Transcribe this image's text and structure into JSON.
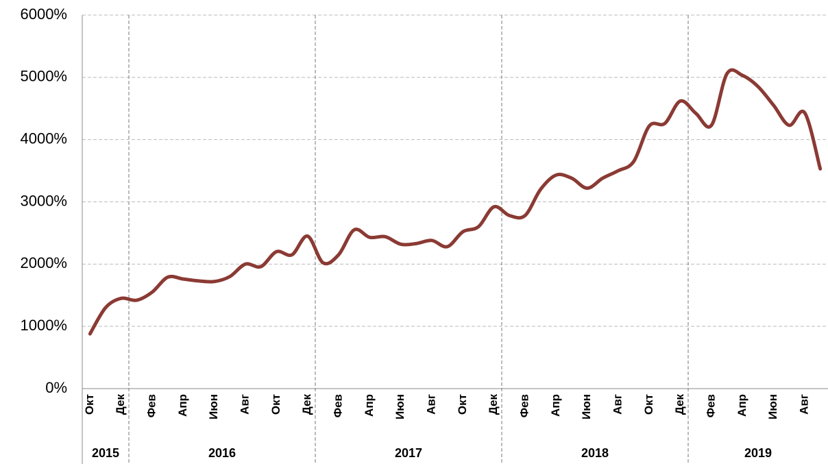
{
  "chart_data": {
    "type": "line",
    "categories": [
      "Окт",
      null,
      "Дек",
      null,
      "Фев",
      null,
      "Апр",
      null,
      "Июн",
      null,
      "Авг",
      null,
      "Окт",
      null,
      "Дек",
      null,
      "Фев",
      null,
      "Апр",
      null,
      "Июн",
      null,
      "Авг",
      null,
      "Окт",
      null,
      "Дек",
      null,
      "Фев",
      null,
      "Апр",
      null,
      "Июн",
      null,
      "Авг",
      null,
      "Окт",
      null,
      "Дек",
      null,
      "Фев",
      null,
      "Апр",
      null,
      "Июн",
      null,
      "Авг",
      null
    ],
    "x_groups": [
      "2015",
      "2015",
      "2015",
      "2016",
      "2016",
      "2016",
      "2016",
      "2016",
      "2016",
      "2016",
      "2016",
      "2016",
      "2016",
      "2016",
      "2016",
      "2017",
      "2017",
      "2017",
      "2017",
      "2017",
      "2017",
      "2017",
      "2017",
      "2017",
      "2017",
      "2017",
      "2017",
      "2018",
      "2018",
      "2018",
      "2018",
      "2018",
      "2018",
      "2018",
      "2018",
      "2018",
      "2018",
      "2018",
      "2018",
      "2019",
      "2019",
      "2019",
      "2019",
      "2019",
      "2019",
      "2019",
      "2019",
      "2019"
    ],
    "series": [
      {
        "color": "#8b3a34",
        "values": [
          880,
          1300,
          1450,
          1420,
          1550,
          1790,
          1760,
          1730,
          1720,
          1800,
          2000,
          1960,
          2200,
          2150,
          2450,
          2020,
          2150,
          2550,
          2430,
          2440,
          2320,
          2330,
          2380,
          2280,
          2520,
          2600,
          2920,
          2780,
          2780,
          3200,
          3430,
          3380,
          3220,
          3380,
          3500,
          3650,
          4220,
          4260,
          4620,
          4420,
          4230,
          5060,
          5030,
          4850,
          4550,
          4230,
          4430,
          3530
        ]
      }
    ],
    "ylim": [
      0,
      6000
    ],
    "yticks": [
      {
        "value": 0,
        "label": "0%"
      },
      {
        "value": 1000,
        "label": "1000%"
      },
      {
        "value": 2000,
        "label": "2000%"
      },
      {
        "value": 3000,
        "label": "3000%"
      },
      {
        "value": 4000,
        "label": "4000%"
      },
      {
        "value": 5000,
        "label": "5000%"
      },
      {
        "value": 6000,
        "label": "6000%"
      }
    ],
    "grid": true
  }
}
